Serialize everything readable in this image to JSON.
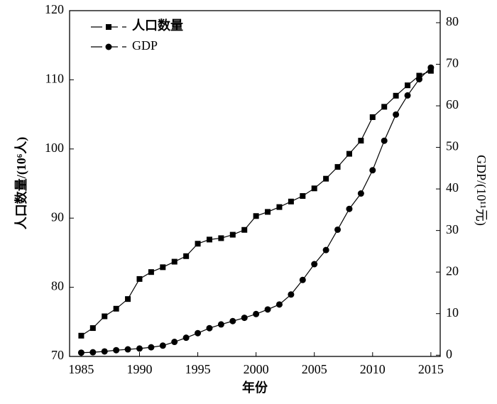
{
  "chart_data": {
    "type": "line",
    "xlabel": "年份",
    "ylabel": "人口数量/(10⁶人)",
    "y2label": "GDP/(10¹¹元)",
    "x": [
      1985,
      1986,
      1987,
      1988,
      1989,
      1990,
      1991,
      1992,
      1993,
      1994,
      1995,
      1996,
      1997,
      1998,
      1999,
      2000,
      2001,
      2002,
      2003,
      2004,
      2005,
      2006,
      2007,
      2008,
      2009,
      2010,
      2011,
      2012,
      2013,
      2014,
      2015
    ],
    "series": [
      {
        "name": "人口数量",
        "color": "#000000",
        "marker": "square",
        "axis": "y",
        "values": [
          73.0,
          74.1,
          75.8,
          76.9,
          78.3,
          81.2,
          82.2,
          82.9,
          83.7,
          84.5,
          86.3,
          86.9,
          87.1,
          87.6,
          88.3,
          90.3,
          90.9,
          91.6,
          92.4,
          93.2,
          94.3,
          95.7,
          97.4,
          99.3,
          101.2,
          104.6,
          106.1,
          107.7,
          109.2,
          110.6,
          111.3
        ]
      },
      {
        "name": "GDP",
        "color": "#000000",
        "marker": "circle",
        "axis": "y2",
        "values": [
          0.6,
          0.7,
          0.9,
          1.2,
          1.4,
          1.6,
          1.9,
          2.3,
          3.2,
          4.2,
          5.3,
          6.5,
          7.4,
          8.2,
          9.0,
          9.9,
          11.0,
          12.2,
          14.6,
          18.1,
          21.9,
          25.3,
          30.2,
          35.2,
          38.9,
          44.5,
          51.6,
          57.9,
          62.5,
          66.4,
          69.2
        ]
      }
    ],
    "xlim": [
      1984,
      2015.8
    ],
    "xticks": [
      1985,
      1990,
      1995,
      2000,
      2005,
      2010,
      2015
    ],
    "ylim": [
      70,
      120
    ],
    "yticks": [
      70,
      80,
      90,
      100,
      110,
      120
    ],
    "y2lim": [
      -0.3,
      82.9
    ],
    "y2ticks": [
      0,
      10,
      20,
      30,
      40,
      50,
      60,
      70,
      80
    ],
    "legend": "upper left",
    "grid": false
  }
}
